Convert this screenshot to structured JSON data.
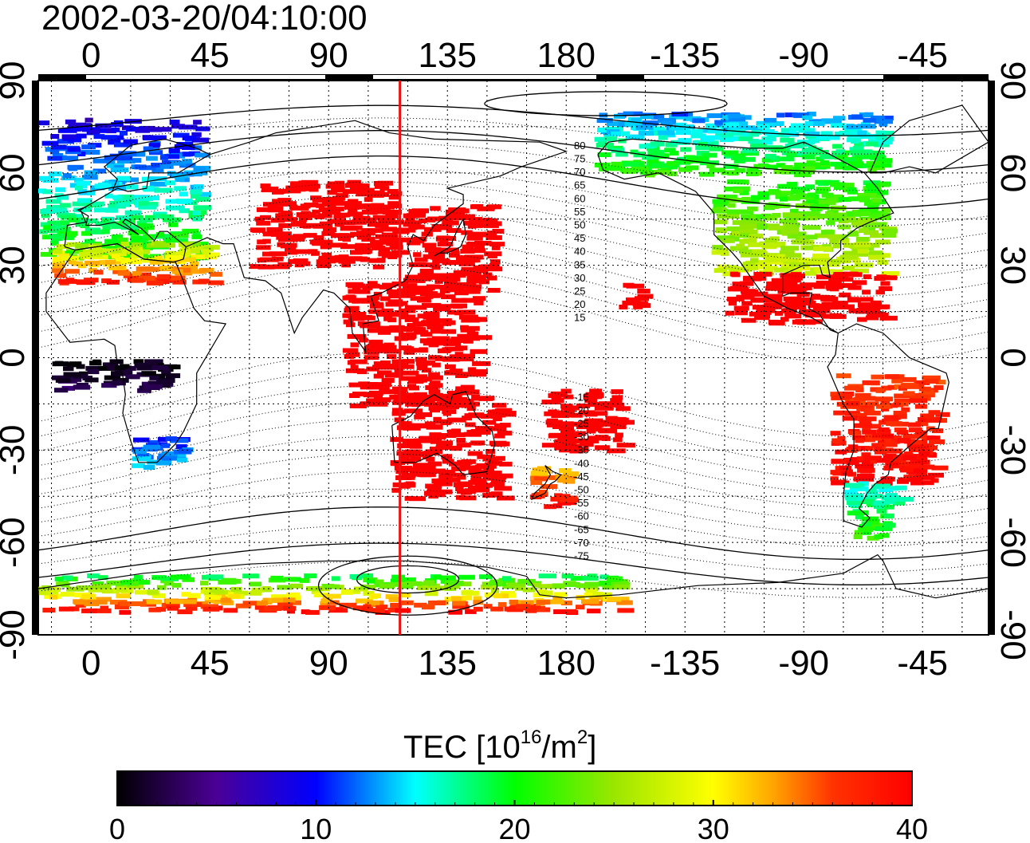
{
  "title": "2002-03-20/04:10:00",
  "map": {
    "projection": "cylindrical equidistant",
    "center_longitude": 120,
    "top_axis_ticks": [
      {
        "lon": 0,
        "label": "0"
      },
      {
        "lon": 45,
        "label": "45"
      },
      {
        "lon": 90,
        "label": "90"
      },
      {
        "lon": 135,
        "label": "135"
      },
      {
        "lon": 180,
        "label": "180"
      },
      {
        "lon": 225,
        "label": "-135"
      },
      {
        "lon": 270,
        "label": "-90"
      },
      {
        "lon": 315,
        "label": "-45"
      }
    ],
    "bottom_axis_ticks": [
      {
        "lon": 0,
        "label": "0"
      },
      {
        "lon": 45,
        "label": "45"
      },
      {
        "lon": 90,
        "label": "90"
      },
      {
        "lon": 135,
        "label": "135"
      },
      {
        "lon": 180,
        "label": "180"
      },
      {
        "lon": 225,
        "label": "-135"
      },
      {
        "lon": 270,
        "label": "-90"
      },
      {
        "lon": 315,
        "label": "-45"
      }
    ],
    "left_axis_ticks": [
      {
        "lat": 90,
        "label": "90"
      },
      {
        "lat": 60,
        "label": "60"
      },
      {
        "lat": 30,
        "label": "30"
      },
      {
        "lat": 0,
        "label": "0"
      },
      {
        "lat": -30,
        "label": "-30"
      },
      {
        "lat": -60,
        "label": "-60"
      },
      {
        "lat": -90,
        "label": "-90"
      }
    ],
    "right_axis_ticks": [
      {
        "lat": 90,
        "label": "90"
      },
      {
        "lat": 60,
        "label": "60"
      },
      {
        "lat": 30,
        "label": "30"
      },
      {
        "lat": 0,
        "label": "0"
      },
      {
        "lat": -30,
        "label": "-30"
      },
      {
        "lat": -60,
        "label": "-60"
      },
      {
        "lat": -90,
        "label": "-90"
      }
    ],
    "noon_meridian_lon": 117,
    "noon_meridian_color": "#ee1111",
    "magnetic_latitude_labels": [
      {
        "value": 80,
        "label": "80"
      },
      {
        "value": 75,
        "label": "75"
      },
      {
        "value": 70,
        "label": "70"
      },
      {
        "value": 65,
        "label": "65"
      },
      {
        "value": 60,
        "label": "60"
      },
      {
        "value": 55,
        "label": "55"
      },
      {
        "value": 50,
        "label": "50"
      },
      {
        "value": 45,
        "label": "45"
      },
      {
        "value": 40,
        "label": "40"
      },
      {
        "value": 35,
        "label": "35"
      },
      {
        "value": 30,
        "label": "30"
      },
      {
        "value": 25,
        "label": "25"
      },
      {
        "value": 20,
        "label": "20"
      },
      {
        "value": 15,
        "label": "15"
      },
      {
        "value": -15,
        "label": "-15"
      },
      {
        "value": -20,
        "label": "-20"
      },
      {
        "value": -25,
        "label": "-25"
      },
      {
        "value": -30,
        "label": "-30"
      },
      {
        "value": -35,
        "label": "-35"
      },
      {
        "value": -40,
        "label": "-40"
      },
      {
        "value": -45,
        "label": "-45"
      },
      {
        "value": -50,
        "label": "-50"
      },
      {
        "value": -55,
        "label": "-55"
      },
      {
        "value": -60,
        "label": "-60"
      },
      {
        "value": -65,
        "label": "-65"
      },
      {
        "value": -70,
        "label": "-70"
      },
      {
        "value": -75,
        "label": "-75"
      }
    ]
  },
  "colorbar": {
    "title_main": "TEC  [10",
    "title_sup1": "16",
    "title_mid": "/m",
    "title_sup2": "2",
    "title_end": "]",
    "min": 0,
    "max": 40,
    "tick_labels": [
      {
        "value": 0,
        "label": "0"
      },
      {
        "value": 10,
        "label": "10"
      },
      {
        "value": 20,
        "label": "20"
      },
      {
        "value": 30,
        "label": "30"
      },
      {
        "value": 40,
        "label": "40"
      }
    ],
    "color_stops": [
      {
        "value": 0,
        "color": "#000000"
      },
      {
        "value": 5,
        "color": "#4b0096"
      },
      {
        "value": 10,
        "color": "#0000ff"
      },
      {
        "value": 15,
        "color": "#00ffff"
      },
      {
        "value": 20,
        "color": "#00ff00"
      },
      {
        "value": 25,
        "color": "#9be600"
      },
      {
        "value": 30,
        "color": "#ffff00"
      },
      {
        "value": 33,
        "color": "#ffa500"
      },
      {
        "value": 36,
        "color": "#ff3300"
      },
      {
        "value": 40,
        "color": "#ff0000"
      }
    ]
  },
  "chart_data": {
    "type": "heatmap",
    "title": "2002-03-20/04:10:00",
    "quantity": "TEC  [10^16/m^2]",
    "x_range": [
      -20,
      340
    ],
    "y_range": [
      -90,
      90
    ],
    "value_range": [
      0,
      40
    ],
    "regions": [
      {
        "region": "Europe",
        "lon": [
          -20,
          40
        ],
        "lat": [
          33,
          78
        ],
        "tec_range": [
          8,
          22
        ]
      },
      {
        "region": "Mediterranean / N Africa",
        "lon": [
          -15,
          45
        ],
        "lat": [
          25,
          38
        ],
        "tec_range": [
          25,
          38
        ]
      },
      {
        "region": "Central Asia",
        "lon": [
          60,
          115
        ],
        "lat": [
          30,
          58
        ],
        "tec": 40
      },
      {
        "region": "East Asia / Japan",
        "lon": [
          118,
          152
        ],
        "lat": [
          22,
          50
        ],
        "tec": 40
      },
      {
        "region": "SE Asia / Philippines",
        "lon": [
          95,
          145
        ],
        "lat": [
          -15,
          25
        ],
        "tec": 40
      },
      {
        "region": "Australia",
        "lon": [
          113,
          155
        ],
        "lat": [
          -45,
          -12
        ],
        "tec": 40
      },
      {
        "region": "New Zealand",
        "lon": [
          165,
          180
        ],
        "lat": [
          -48,
          -35
        ],
        "tec_range": [
          32,
          40
        ]
      },
      {
        "region": "Pacific islands",
        "lon": [
          170,
          200
        ],
        "lat": [
          -30,
          -10
        ],
        "tec": 40
      },
      {
        "region": "Hawaii",
        "lon": [
          198,
          208
        ],
        "lat": [
          17,
          25
        ],
        "tec": 40
      },
      {
        "region": "North America",
        "lon": [
          235,
          300
        ],
        "lat": [
          28,
          58
        ],
        "tec_range": [
          20,
          28
        ]
      },
      {
        "region": "Alaska / Canada north",
        "lon": [
          190,
          300
        ],
        "lat": [
          60,
          80
        ],
        "tec_range": [
          12,
          22
        ]
      },
      {
        "region": "Mexico / Caribbean",
        "lon": [
          240,
          300
        ],
        "lat": [
          12,
          28
        ],
        "tec": 40
      },
      {
        "region": "South America",
        "lon": [
          280,
          320
        ],
        "lat": [
          -40,
          -5
        ],
        "tec_range": [
          36,
          40
        ]
      },
      {
        "region": "South America south",
        "lon": [
          285,
          305
        ],
        "lat": [
          -58,
          -40
        ],
        "tec_range": [
          15,
          22
        ]
      },
      {
        "region": "Central Africa",
        "lon": [
          -15,
          30
        ],
        "lat": [
          -10,
          0
        ],
        "tec_range": [
          0,
          3
        ]
      },
      {
        "region": "Southern Africa",
        "lon": [
          15,
          35
        ],
        "lat": [
          -35,
          -25
        ],
        "tec_range": [
          10,
          15
        ]
      },
      {
        "region": "Antarctica",
        "lon": [
          -20,
          200
        ],
        "lat": [
          -82,
          -70
        ],
        "tec_range": [
          18,
          40
        ]
      }
    ]
  }
}
